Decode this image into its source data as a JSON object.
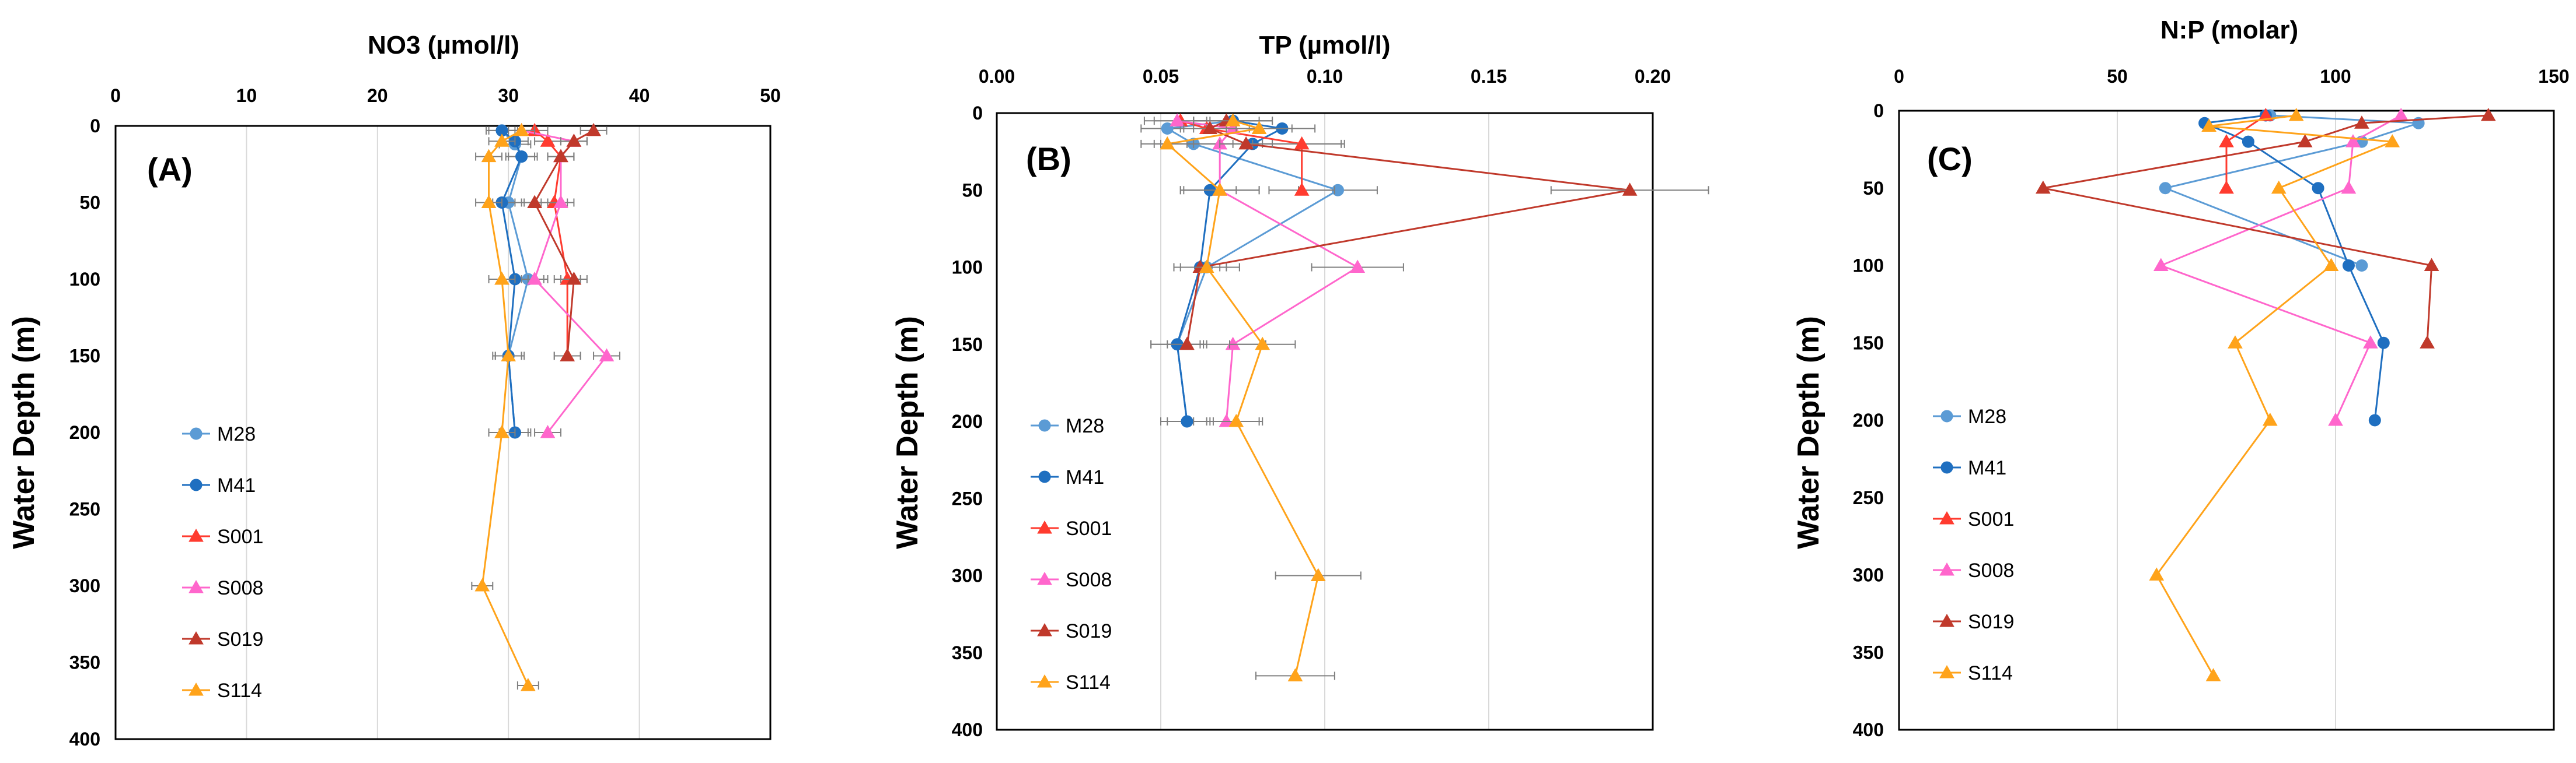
{
  "series_styles": [
    {
      "name": "M28",
      "color": "#5b9bd5",
      "marker": "circle"
    },
    {
      "name": "M41",
      "color": "#1f6fc0",
      "marker": "circle"
    },
    {
      "name": "S001",
      "color": "#ff3b2f",
      "marker": "triangle"
    },
    {
      "name": "S008",
      "color": "#ff66cc",
      "marker": "triangle"
    },
    {
      "name": "S019",
      "color": "#c0392b",
      "marker": "triangle"
    },
    {
      "name": "S114",
      "color": "#ffa31a",
      "marker": "triangle"
    }
  ],
  "chart_data": [
    {
      "type": "line",
      "panel_label": "(A)",
      "title": "NO3 (µmol/l)",
      "ylabel": "Water Depth (m)",
      "xlim": [
        0,
        50
      ],
      "ylim": [
        0,
        400
      ],
      "xticks": [
        "0",
        "10",
        "20",
        "30",
        "40",
        "50"
      ],
      "yticks": [
        "0",
        "50",
        "100",
        "150",
        "200",
        "250",
        "300",
        "350",
        "400"
      ],
      "series": [
        {
          "name": "M28",
          "points": [
            [
              29.5,
              3
            ],
            [
              30.5,
              12
            ],
            [
              31,
              20
            ],
            [
              30,
              50
            ],
            [
              31.5,
              100
            ],
            [
              30,
              150
            ],
            [
              30.5,
              200
            ]
          ],
          "err": [
            1.2,
            1.2,
            1.2,
            1.2,
            1.2,
            1.2,
            1.2
          ]
        },
        {
          "name": "M41",
          "points": [
            [
              29.5,
              3
            ],
            [
              30.5,
              10
            ],
            [
              31,
              20
            ],
            [
              29.5,
              50
            ],
            [
              30.5,
              100
            ],
            [
              30,
              150
            ],
            [
              30.5,
              200
            ]
          ],
          "err": [
            1,
            1,
            1,
            1,
            1,
            1,
            1
          ]
        },
        {
          "name": "S001",
          "points": [
            [
              32,
              3
            ],
            [
              33,
              10
            ],
            [
              34,
              20
            ],
            [
              33.5,
              50
            ],
            [
              34.5,
              100
            ],
            [
              34.5,
              150
            ]
          ],
          "err": [
            1,
            1,
            1,
            1,
            1,
            1
          ]
        },
        {
          "name": "S008",
          "points": [
            [
              31,
              3
            ],
            [
              35,
              10
            ],
            [
              34,
              20
            ],
            [
              34,
              50
            ],
            [
              32,
              100
            ],
            [
              37.5,
              150
            ],
            [
              33,
              200
            ]
          ],
          "err": [
            1,
            1,
            1,
            1,
            1,
            1,
            1
          ]
        },
        {
          "name": "S019",
          "points": [
            [
              36.5,
              3
            ],
            [
              35,
              10
            ],
            [
              34,
              20
            ],
            [
              32,
              50
            ],
            [
              35,
              100
            ],
            [
              34.5,
              150
            ]
          ],
          "err": [
            1,
            1,
            1,
            1,
            1,
            1
          ]
        },
        {
          "name": "S114",
          "points": [
            [
              31,
              3
            ],
            [
              29.5,
              10
            ],
            [
              28.5,
              20
            ],
            [
              28.5,
              50
            ],
            [
              29.5,
              100
            ],
            [
              30,
              150
            ],
            [
              29.5,
              200
            ],
            [
              28,
              300
            ],
            [
              31.5,
              365
            ]
          ],
          "err": [
            1,
            1,
            1,
            1,
            1,
            1,
            1,
            0.8,
            0.8
          ]
        }
      ]
    },
    {
      "type": "line",
      "panel_label": "(B)",
      "title": "TP (µmol/l)",
      "ylabel": "Water Depth (m)",
      "xlim": [
        0,
        0.2
      ],
      "ylim": [
        0,
        400
      ],
      "xticks": [
        "0.00",
        "0.05",
        "0.10",
        "0.15",
        "0.20"
      ],
      "yticks": [
        "0",
        "50",
        "100",
        "150",
        "200",
        "250",
        "300",
        "350",
        "400"
      ],
      "series": [
        {
          "name": "M28",
          "points": [
            [
              0.072,
              5
            ],
            [
              0.052,
              10
            ],
            [
              0.06,
              20
            ],
            [
              0.104,
              50
            ],
            [
              0.064,
              100
            ],
            [
              0.055,
              150
            ],
            [
              0.058,
              200
            ]
          ],
          "err": [
            0.012,
            0.008,
            0.012,
            0.012,
            0.01,
            0.008,
            0.006
          ]
        },
        {
          "name": "M41",
          "points": [
            [
              0.072,
              5
            ],
            [
              0.087,
              10
            ],
            [
              0.078,
              20
            ],
            [
              0.065,
              50
            ],
            [
              0.062,
              100
            ],
            [
              0.055,
              150
            ],
            [
              0.058,
              200
            ]
          ],
          "err": [
            0.012,
            0.01,
            0.028,
            0.008,
            0.006,
            0.008,
            0.008
          ]
        },
        {
          "name": "S001",
          "points": [
            [
              0.056,
              5
            ],
            [
              0.064,
              10
            ],
            [
              0.093,
              20
            ],
            [
              0.093,
              50
            ]
          ],
          "err": [
            0.008,
            0.008,
            0.012,
            0.01
          ]
        },
        {
          "name": "S008",
          "points": [
            [
              0.055,
              5
            ],
            [
              0.072,
              10
            ],
            [
              0.068,
              20
            ],
            [
              0.068,
              50
            ],
            [
              0.11,
              100
            ],
            [
              0.072,
              150
            ],
            [
              0.07,
              200
            ]
          ],
          "err": [
            0.01,
            0.008,
            0.01,
            0.012,
            0.014,
            0.01,
            0.01
          ]
        },
        {
          "name": "S019",
          "points": [
            [
              0.07,
              5
            ],
            [
              0.065,
              10
            ],
            [
              0.076,
              20
            ],
            [
              0.193,
              50
            ],
            [
              0.062,
              100
            ],
            [
              0.058,
              150
            ]
          ],
          "err": [
            0.01,
            0.008,
            0.008,
            0.024,
            0.008,
            0.006
          ]
        },
        {
          "name": "S114",
          "points": [
            [
              0.072,
              5
            ],
            [
              0.08,
              10
            ],
            [
              0.052,
              20
            ],
            [
              0.068,
              50
            ],
            [
              0.064,
              100
            ],
            [
              0.081,
              150
            ],
            [
              0.073,
              200
            ],
            [
              0.098,
              300
            ],
            [
              0.091,
              365
            ]
          ],
          "err": [
            0.012,
            0.01,
            0.008,
            0.012,
            0.01,
            0.01,
            0.008,
            0.013,
            0.012
          ]
        }
      ]
    },
    {
      "type": "line",
      "panel_label": "(C)",
      "title": "N:P (molar)",
      "ylabel": "Water Depth (m)",
      "xlim": [
        0,
        150
      ],
      "ylim": [
        0,
        400
      ],
      "xticks": [
        "0",
        "50",
        "100",
        "150"
      ],
      "yticks": [
        "0",
        "50",
        "100",
        "150",
        "200",
        "250",
        "300",
        "350",
        "400"
      ],
      "series": [
        {
          "name": "M28",
          "points": [
            [
              85,
              3
            ],
            [
              119,
              8
            ],
            [
              106,
              20
            ],
            [
              61,
              50
            ],
            [
              106,
              100
            ]
          ]
        },
        {
          "name": "M41",
          "points": [
            [
              84,
              3
            ],
            [
              70,
              8
            ],
            [
              80,
              20
            ],
            [
              96,
              50
            ],
            [
              103,
              100
            ],
            [
              111,
              150
            ],
            [
              109,
              200
            ]
          ]
        },
        {
          "name": "S001",
          "points": [
            [
              84,
              3
            ],
            [
              75,
              20
            ],
            [
              75,
              50
            ]
          ]
        },
        {
          "name": "S008",
          "points": [
            [
              115,
              3
            ],
            [
              104,
              20
            ],
            [
              103,
              50
            ],
            [
              60,
              100
            ],
            [
              108,
              150
            ],
            [
              100,
              200
            ]
          ]
        },
        {
          "name": "S019",
          "points": [
            [
              135,
              3
            ],
            [
              106,
              8
            ],
            [
              93,
              20
            ],
            [
              33,
              50
            ],
            [
              122,
              100
            ],
            [
              121,
              150
            ]
          ]
        },
        {
          "name": "S114",
          "points": [
            [
              91,
              3
            ],
            [
              71,
              10
            ],
            [
              113,
              20
            ],
            [
              87,
              50
            ],
            [
              99,
              100
            ],
            [
              77,
              150
            ],
            [
              85,
              200
            ],
            [
              59,
              300
            ],
            [
              72,
              365
            ]
          ]
        }
      ]
    }
  ]
}
